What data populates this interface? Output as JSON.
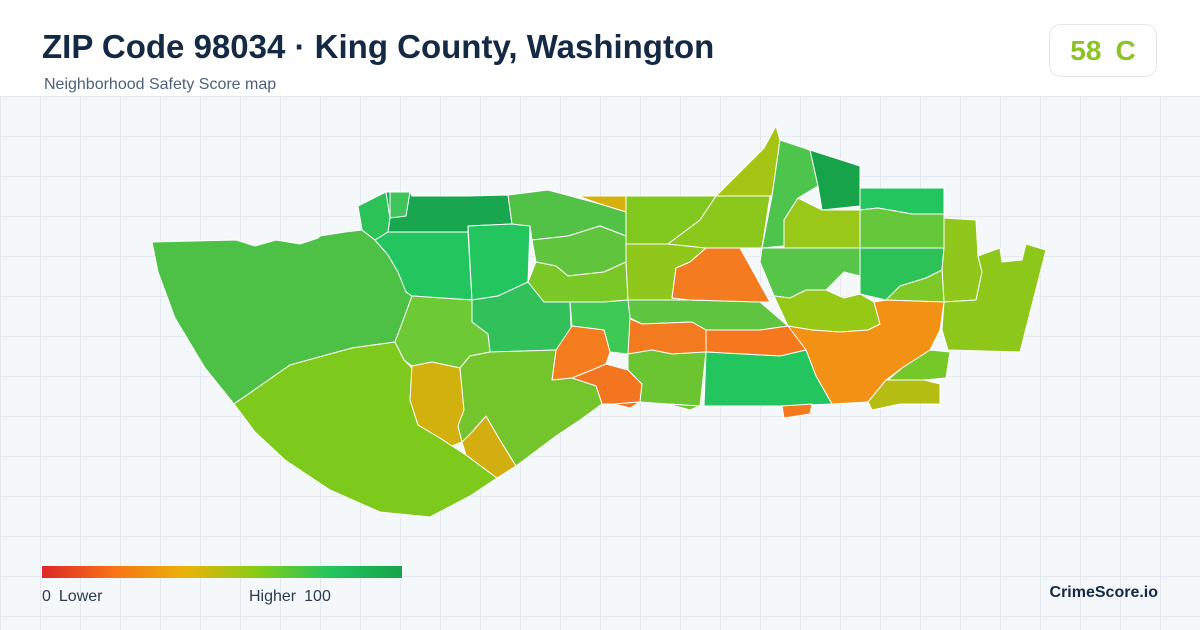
{
  "header": {
    "title": "ZIP Code 98034 · King County, Washington",
    "subtitle": "Neighborhood Safety Score map"
  },
  "score": {
    "value": "58",
    "grade": "C",
    "color": "#8cc425"
  },
  "legend": {
    "min_value": "0",
    "min_label": "Lower",
    "max_label": "Higher",
    "max_value": "100",
    "gradient": [
      "#dc2626",
      "#f97316",
      "#eab308",
      "#84cc16",
      "#22c55e",
      "#16a34a"
    ]
  },
  "brand": "CrimeScore.io",
  "map": {
    "border_color": "#ffffff",
    "regions": [
      {
        "name": "west-lobe",
        "color": "#4cc146"
      },
      {
        "name": "southwest-lobe",
        "color": "#7dca1c"
      },
      {
        "name": "tract-nw-1",
        "color": "#2dc257"
      },
      {
        "name": "tract-nw-2",
        "color": "#22c55e"
      },
      {
        "name": "tract-nw-3",
        "color": "#18a74f"
      },
      {
        "name": "tract-nw-4",
        "color": "#3ec45a"
      },
      {
        "name": "tract-n-yellow",
        "color": "#d8b00d"
      },
      {
        "name": "tract-n-2",
        "color": "#52c246"
      },
      {
        "name": "tract-n-3",
        "color": "#80c81e"
      },
      {
        "name": "tract-n-4",
        "color": "#60c43c"
      },
      {
        "name": "tract-center-w",
        "color": "#31c05a"
      },
      {
        "name": "tract-center-w2",
        "color": "#22c55e"
      },
      {
        "name": "tract-center-1",
        "color": "#79c826"
      },
      {
        "name": "tract-center-2",
        "color": "#5fc540"
      },
      {
        "name": "tract-center-3",
        "color": "#8fc71a"
      },
      {
        "name": "tract-orange-center",
        "color": "#f47b20"
      },
      {
        "name": "tract-center-4",
        "color": "#8cc71c"
      },
      {
        "name": "tract-ne-1",
        "color": "#a6c414"
      },
      {
        "name": "tract-ne-2",
        "color": "#4dc44c"
      },
      {
        "name": "tract-ne-3",
        "color": "#16a34a"
      },
      {
        "name": "tract-ne-4",
        "color": "#22c55e"
      },
      {
        "name": "tract-ne-5",
        "color": "#9ac818"
      },
      {
        "name": "tract-ne-6",
        "color": "#65c83b"
      },
      {
        "name": "tract-ne-7",
        "color": "#56c548"
      },
      {
        "name": "tract-ne-8",
        "color": "#2cc257"
      },
      {
        "name": "tract-ne-9",
        "color": "#8fc71a"
      },
      {
        "name": "tract-e-1",
        "color": "#8cc71a"
      },
      {
        "name": "tract-e-2",
        "color": "#96c816"
      },
      {
        "name": "tract-e-3",
        "color": "#7cc927"
      },
      {
        "name": "tract-orange-east",
        "color": "#f29114"
      },
      {
        "name": "tract-e-4",
        "color": "#74c828"
      },
      {
        "name": "tract-e-5",
        "color": "#b4bd12"
      },
      {
        "name": "tract-orange-sc-1",
        "color": "#f47a20"
      },
      {
        "name": "tract-orange-sc-2",
        "color": "#f5781f"
      },
      {
        "name": "tract-orange-sc-3",
        "color": "#f5781f"
      },
      {
        "name": "tract-orange-sw",
        "color": "#f57d1d"
      },
      {
        "name": "tract-orange-sw2",
        "color": "#f4751f"
      },
      {
        "name": "tract-s-1",
        "color": "#3ec854"
      },
      {
        "name": "tract-s-2",
        "color": "#6ac531"
      },
      {
        "name": "tract-s-3",
        "color": "#22c55e"
      },
      {
        "name": "tract-s-4",
        "color": "#6ec637"
      },
      {
        "name": "tract-w-1",
        "color": "#6dca35"
      },
      {
        "name": "tract-yellow-sw",
        "color": "#d2b10f"
      },
      {
        "name": "tract-yellow-sw2",
        "color": "#d3ae10"
      },
      {
        "name": "tract-sw-green",
        "color": "#74c52c"
      },
      {
        "name": "tract-small-orange",
        "color": "#f5781f"
      }
    ]
  }
}
